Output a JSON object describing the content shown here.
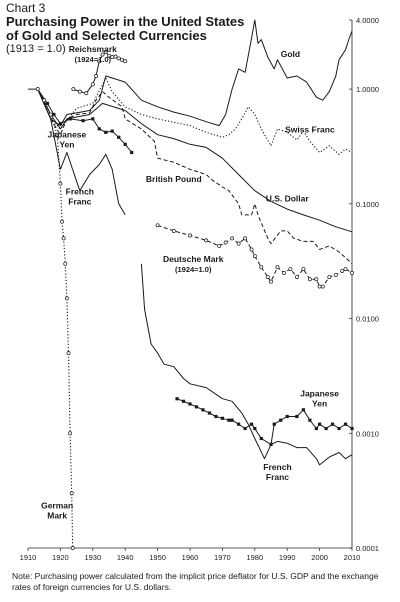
{
  "header": {
    "chart_number": "Chart 3",
    "title_line1": "Purchasing Power in the United States",
    "title_line2": "of Gold and Selected Currencies",
    "subtitle": "(1913 = 1.0)"
  },
  "note": "Note: Purchasing power calculated from the implicit price deflator for U.S. GDP and the exchange rates of foreign currencies for U.S. dollars.",
  "chart_data": {
    "type": "line",
    "title": "Purchasing Power in the United States of Gold and Selected Currencies",
    "subtitle": "(1913 = 1.0)",
    "y_scale": "log",
    "xlim": [
      1910,
      2010
    ],
    "ylim": [
      0.0001,
      4.0
    ],
    "x_ticks": [
      "1910",
      "1920",
      "1930",
      "1940",
      "1950",
      "1960",
      "1970",
      "1980",
      "1990",
      "2000",
      "2010"
    ],
    "y_ticks": [
      {
        "value": 4.0,
        "label": "4.0000"
      },
      {
        "value": 1.0,
        "label": "1.0000"
      },
      {
        "value": 0.1,
        "label": "0.1000"
      },
      {
        "value": 0.01,
        "label": "0.0100"
      },
      {
        "value": 0.001,
        "label": "0.0010"
      },
      {
        "value": 0.0001,
        "label": "0.0001"
      }
    ],
    "series": [
      {
        "name": "Gold",
        "style": "solid",
        "label": {
          "lines": [
            "Gold"
          ],
          "x": 1991,
          "y": 1.9
        },
        "points": [
          [
            1910,
            1.0
          ],
          [
            1913,
            1.0
          ],
          [
            1917,
            0.55
          ],
          [
            1920,
            0.48
          ],
          [
            1922,
            0.6
          ],
          [
            1925,
            0.62
          ],
          [
            1929,
            0.65
          ],
          [
            1932,
            0.8
          ],
          [
            1934,
            1.3
          ],
          [
            1940,
            1.15
          ],
          [
            1945,
            0.8
          ],
          [
            1950,
            0.7
          ],
          [
            1955,
            0.63
          ],
          [
            1960,
            0.58
          ],
          [
            1965,
            0.52
          ],
          [
            1969,
            0.48
          ],
          [
            1971,
            0.6
          ],
          [
            1973,
            1.0
          ],
          [
            1975,
            1.5
          ],
          [
            1977,
            1.4
          ],
          [
            1979,
            2.8
          ],
          [
            1980,
            4.0
          ],
          [
            1981,
            2.5
          ],
          [
            1982,
            2.7
          ],
          [
            1984,
            1.9
          ],
          [
            1986,
            1.5
          ],
          [
            1987,
            1.8
          ],
          [
            1990,
            1.25
          ],
          [
            1993,
            1.3
          ],
          [
            1996,
            1.15
          ],
          [
            1999,
            0.85
          ],
          [
            2001,
            0.8
          ],
          [
            2003,
            0.95
          ],
          [
            2005,
            1.3
          ],
          [
            2006,
            1.8
          ],
          [
            2008,
            2.2
          ],
          [
            2009,
            2.7
          ],
          [
            2010,
            3.2
          ]
        ]
      },
      {
        "name": "Swiss Franc",
        "style": "dotted",
        "label": {
          "lines": [
            "Swiss Franc"
          ],
          "x": 1997,
          "y": 0.42
        },
        "points": [
          [
            1913,
            1.0
          ],
          [
            1917,
            0.55
          ],
          [
            1920,
            0.45
          ],
          [
            1925,
            0.68
          ],
          [
            1930,
            0.75
          ],
          [
            1934,
            1.25
          ],
          [
            1936,
            0.95
          ],
          [
            1940,
            0.7
          ],
          [
            1945,
            0.6
          ],
          [
            1950,
            0.55
          ],
          [
            1960,
            0.48
          ],
          [
            1965,
            0.42
          ],
          [
            1970,
            0.38
          ],
          [
            1972,
            0.4
          ],
          [
            1974,
            0.45
          ],
          [
            1976,
            0.55
          ],
          [
            1978,
            0.7
          ],
          [
            1980,
            0.6
          ],
          [
            1982,
            0.45
          ],
          [
            1985,
            0.32
          ],
          [
            1987,
            0.45
          ],
          [
            1990,
            0.42
          ],
          [
            1993,
            0.36
          ],
          [
            1995,
            0.43
          ],
          [
            1997,
            0.35
          ],
          [
            2000,
            0.28
          ],
          [
            2003,
            0.32
          ],
          [
            2006,
            0.27
          ],
          [
            2008,
            0.3
          ],
          [
            2010,
            0.28
          ]
        ]
      },
      {
        "name": "Japanese Yen",
        "style": "solid-square-markers",
        "label": {
          "lines": [
            "Japanese",
            "Yen"
          ],
          "x": 1922,
          "y": 0.38
        },
        "points": [
          [
            1913,
            1.0
          ],
          [
            1916,
            0.75
          ],
          [
            1918,
            0.6
          ],
          [
            1920,
            0.5
          ],
          [
            1923,
            0.55
          ],
          [
            1927,
            0.53
          ],
          [
            1930,
            0.55
          ],
          [
            1932,
            0.45
          ],
          [
            1934,
            0.42
          ],
          [
            1936,
            0.43
          ],
          [
            1938,
            0.38
          ],
          [
            1940,
            0.33
          ],
          [
            1942,
            0.28
          ]
        ]
      },
      {
        "name": "Reichsmark",
        "style": "open-circle-markers",
        "label": {
          "lines": [
            "Reichsmark",
            "(1924=1.0)"
          ],
          "x": 1930,
          "y": 2.1
        },
        "points": [
          [
            1924,
            1.0
          ],
          [
            1926,
            0.95
          ],
          [
            1928,
            0.92
          ],
          [
            1930,
            1.1
          ],
          [
            1931,
            1.3
          ],
          [
            1932,
            1.75
          ],
          [
            1933,
            2.0
          ],
          [
            1934,
            2.1
          ],
          [
            1935,
            1.95
          ],
          [
            1936,
            1.9
          ],
          [
            1937,
            1.92
          ],
          [
            1938,
            1.85
          ],
          [
            1939,
            1.8
          ],
          [
            1940,
            1.75
          ]
        ]
      },
      {
        "name": "British Pound",
        "style": "dashed",
        "label": {
          "lines": [
            "British Pound"
          ],
          "x": 1955,
          "y": 0.155
        },
        "points": [
          [
            1913,
            1.0
          ],
          [
            1917,
            0.55
          ],
          [
            1920,
            0.4
          ],
          [
            1922,
            0.55
          ],
          [
            1925,
            0.6
          ],
          [
            1929,
            0.62
          ],
          [
            1931,
            0.8
          ],
          [
            1933,
            0.95
          ],
          [
            1935,
            0.85
          ],
          [
            1939,
            0.7
          ],
          [
            1940,
            0.55
          ],
          [
            1945,
            0.45
          ],
          [
            1949,
            0.35
          ],
          [
            1950,
            0.25
          ],
          [
            1955,
            0.23
          ],
          [
            1960,
            0.2
          ],
          [
            1965,
            0.18
          ],
          [
            1967,
            0.16
          ],
          [
            1970,
            0.14
          ],
          [
            1972,
            0.13
          ],
          [
            1975,
            0.1
          ],
          [
            1976,
            0.08
          ],
          [
            1979,
            0.08
          ],
          [
            1980,
            0.1
          ],
          [
            1981,
            0.08
          ],
          [
            1984,
            0.05
          ],
          [
            1985,
            0.045
          ],
          [
            1988,
            0.058
          ],
          [
            1990,
            0.058
          ],
          [
            1992,
            0.05
          ],
          [
            1995,
            0.047
          ],
          [
            1998,
            0.047
          ],
          [
            2000,
            0.04
          ],
          [
            2003,
            0.043
          ],
          [
            2006,
            0.038
          ],
          [
            2008,
            0.034
          ],
          [
            2010,
            0.03
          ]
        ]
      },
      {
        "name": "U.S. Dollar",
        "style": "solid",
        "label": {
          "lines": [
            "U.S. Dollar"
          ],
          "x": 1990,
          "y": 0.105
        },
        "points": [
          [
            1913,
            1.0
          ],
          [
            1917,
            0.6
          ],
          [
            1920,
            0.45
          ],
          [
            1922,
            0.55
          ],
          [
            1929,
            0.6
          ],
          [
            1933,
            0.75
          ],
          [
            1940,
            0.65
          ],
          [
            1945,
            0.5
          ],
          [
            1950,
            0.4
          ],
          [
            1955,
            0.37
          ],
          [
            1960,
            0.33
          ],
          [
            1965,
            0.31
          ],
          [
            1970,
            0.25
          ],
          [
            1975,
            0.18
          ],
          [
            1980,
            0.13
          ],
          [
            1985,
            0.105
          ],
          [
            1990,
            0.09
          ],
          [
            1995,
            0.08
          ],
          [
            2000,
            0.072
          ],
          [
            2005,
            0.063
          ],
          [
            2010,
            0.057
          ]
        ]
      },
      {
        "name": "French Franc",
        "style": "solid",
        "label": {
          "lines": [
            "French",
            "Franc"
          ],
          "x": 1926,
          "y": 0.12
        },
        "points": [
          [
            1913,
            1.0
          ],
          [
            1917,
            0.55
          ],
          [
            1920,
            0.2
          ],
          [
            1922,
            0.28
          ],
          [
            1926,
            0.13
          ],
          [
            1929,
            0.18
          ],
          [
            1932,
            0.22
          ],
          [
            1934,
            0.27
          ],
          [
            1936,
            0.2
          ],
          [
            1938,
            0.1
          ],
          [
            1940,
            0.08
          ]
        ]
      },
      {
        "name": "French Franc",
        "style": "solid",
        "label": {
          "lines": [
            "French",
            "Franc"
          ],
          "x": 1987,
          "y": 0.00048
        },
        "points": [
          [
            1945,
            0.03
          ],
          [
            1946,
            0.012
          ],
          [
            1948,
            0.006
          ],
          [
            1950,
            0.005
          ],
          [
            1952,
            0.004
          ],
          [
            1955,
            0.0038
          ],
          [
            1958,
            0.003
          ],
          [
            1960,
            0.0027
          ],
          [
            1965,
            0.0025
          ],
          [
            1970,
            0.002
          ],
          [
            1973,
            0.0019
          ],
          [
            1976,
            0.0015
          ],
          [
            1978,
            0.0012
          ],
          [
            1980,
            0.0009
          ],
          [
            1983,
            0.0006
          ],
          [
            1985,
            0.0008
          ],
          [
            1987,
            0.00085
          ],
          [
            1990,
            0.00082
          ],
          [
            1993,
            0.00075
          ],
          [
            1996,
            0.00075
          ],
          [
            1999,
            0.0006
          ],
          [
            2000,
            0.00053
          ],
          [
            2003,
            0.00062
          ],
          [
            2006,
            0.00068
          ],
          [
            2008,
            0.0006
          ],
          [
            2010,
            0.00065
          ]
        ]
      },
      {
        "name": "Deutsche Mark",
        "style": "dashed-open-circle-markers",
        "label": {
          "lines": [
            "Deutsche Mark",
            "(1924=1.0)"
          ],
          "x": 1961,
          "y": 0.031
        },
        "points": [
          [
            1950,
            0.065
          ],
          [
            1955,
            0.058
          ],
          [
            1960,
            0.053
          ],
          [
            1965,
            0.048
          ],
          [
            1969,
            0.043
          ],
          [
            1971,
            0.046
          ],
          [
            1973,
            0.05
          ],
          [
            1975,
            0.045
          ],
          [
            1977,
            0.05
          ],
          [
            1979,
            0.04
          ],
          [
            1980,
            0.035
          ],
          [
            1982,
            0.028
          ],
          [
            1984,
            0.023
          ],
          [
            1985,
            0.021
          ],
          [
            1987,
            0.028
          ],
          [
            1989,
            0.025
          ],
          [
            1991,
            0.027
          ],
          [
            1993,
            0.023
          ],
          [
            1995,
            0.027
          ],
          [
            1997,
            0.022
          ],
          [
            1999,
            0.022
          ],
          [
            2000,
            0.019
          ],
          [
            2001,
            0.019
          ],
          [
            2003,
            0.023
          ],
          [
            2005,
            0.024
          ],
          [
            2007,
            0.026
          ],
          [
            2008,
            0.027
          ],
          [
            2010,
            0.025
          ]
        ]
      },
      {
        "name": "Japanese Yen",
        "style": "solid-square-markers",
        "label": {
          "lines": [
            "Japanese",
            "Yen"
          ],
          "x": 2000,
          "y": 0.0021
        },
        "points": [
          [
            1956,
            0.002
          ],
          [
            1958,
            0.0019
          ],
          [
            1960,
            0.0018
          ],
          [
            1962,
            0.0017
          ],
          [
            1964,
            0.0016
          ],
          [
            1966,
            0.0015
          ],
          [
            1968,
            0.0014
          ],
          [
            1970,
            0.00135
          ],
          [
            1972,
            0.0013
          ],
          [
            1973,
            0.0013
          ],
          [
            1975,
            0.0012
          ],
          [
            1977,
            0.0011
          ],
          [
            1979,
            0.0012
          ],
          [
            1980,
            0.0011
          ],
          [
            1982,
            0.0009
          ],
          [
            1985,
            0.0008
          ],
          [
            1986,
            0.0012
          ],
          [
            1988,
            0.0013
          ],
          [
            1990,
            0.0014
          ],
          [
            1993,
            0.0014
          ],
          [
            1995,
            0.0016
          ],
          [
            1997,
            0.0013
          ],
          [
            1999,
            0.0011
          ],
          [
            2000,
            0.0012
          ],
          [
            2002,
            0.0011
          ],
          [
            2004,
            0.0012
          ],
          [
            2006,
            0.0011
          ],
          [
            2008,
            0.0012
          ],
          [
            2010,
            0.0011
          ]
        ]
      },
      {
        "name": "German Mark",
        "style": "dotted-open-circle-markers",
        "label": {
          "lines": [
            "German",
            "Mark"
          ],
          "x": 1919,
          "y": 0.00022
        },
        "points": [
          [
            1913,
            1.0
          ],
          [
            1915,
            0.8
          ],
          [
            1917,
            0.6
          ],
          [
            1919,
            0.4
          ],
          [
            1920,
            0.15
          ],
          [
            1920.5,
            0.07
          ],
          [
            1921,
            0.05
          ],
          [
            1921.5,
            0.03
          ],
          [
            1922,
            0.015
          ],
          [
            1922.5,
            0.005
          ],
          [
            1923,
            0.001
          ],
          [
            1923.5,
            0.0003
          ],
          [
            1923.8,
            0.0001
          ]
        ]
      }
    ]
  }
}
